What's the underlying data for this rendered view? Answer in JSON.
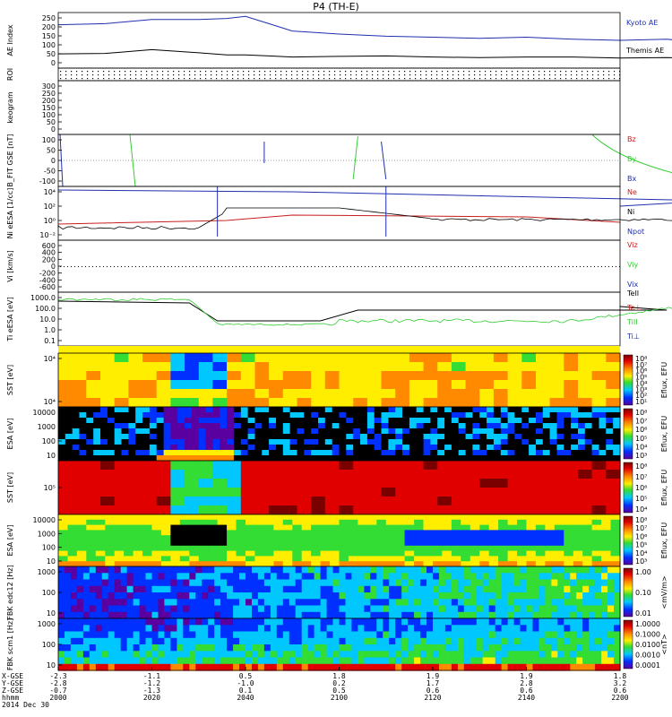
{
  "title": "P4 (TH-E)",
  "colors": {
    "blue": "#1f2fb0",
    "red": "#c81e1e",
    "green": "#33cc33",
    "black": "#000000"
  },
  "footer": {
    "row_labels": [
      "X-GSE",
      "Y-GSE",
      "Z-GSE",
      "hhmm",
      "2014 Dec 30"
    ],
    "columns": [
      {
        "x": [
          "-2.3",
          "-2.8",
          "-0.7",
          "2000"
        ]
      },
      {
        "x": [
          "-1.1",
          "-1.2",
          "-1.3",
          "2020"
        ]
      },
      {
        "x": [
          "0.5",
          "-1.0",
          "0.1",
          "2040"
        ]
      },
      {
        "x": [
          "1.8",
          "0.2",
          "0.5",
          "2100"
        ]
      },
      {
        "x": [
          "1.9",
          "1.7",
          "0.6",
          "2120"
        ]
      },
      {
        "x": [
          "1.9",
          "2.8",
          "0.6",
          "2140"
        ]
      },
      {
        "x": [
          "1.8",
          "3.2",
          "0.6",
          "2200"
        ]
      }
    ]
  },
  "chart_data": [
    {
      "type": "line",
      "panel": "ae",
      "ylabel": "AE Index",
      "yticks": [
        "250",
        "200",
        "150",
        "100",
        "50",
        "0"
      ],
      "ylim": [
        0,
        250
      ],
      "x": [
        2000,
        2010,
        2020,
        2030,
        2036,
        2040,
        2045,
        2050,
        2060,
        2070,
        2080,
        2090,
        2100,
        2110,
        2120,
        2130,
        2140,
        2150,
        2155,
        2160,
        2200
      ],
      "series": [
        {
          "name": "Kyoto AE",
          "color": "#1f2fb0",
          "values": [
            200,
            205,
            225,
            225,
            230,
            240,
            205,
            170,
            155,
            145,
            140,
            135,
            140,
            130,
            125,
            130,
            110,
            80,
            90,
            60,
            110
          ]
        },
        {
          "name": "Themis AE",
          "color": "#000000",
          "values": [
            60,
            62,
            80,
            65,
            55,
            55,
            50,
            45,
            48,
            50,
            45,
            42,
            45,
            45,
            40,
            42,
            38,
            35,
            40,
            30,
            70
          ]
        }
      ]
    },
    {
      "type": "line",
      "panel": "roi",
      "ylabel": "ROI",
      "series": []
    },
    {
      "type": "heatmap",
      "panel": "keogram",
      "ylabel": "keogram",
      "yticks": [
        "300",
        "250",
        "200",
        "150",
        "100",
        "50",
        "0"
      ],
      "ylim": [
        0,
        300
      ]
    },
    {
      "type": "line",
      "panel": "bfit",
      "ylabel": "B_FIT GSE [nT]",
      "yticks": [
        "100",
        "50",
        "0",
        "-50",
        "-100"
      ],
      "ylim": [
        -100,
        100
      ],
      "series": [
        {
          "name": "Bz",
          "color": "#c81e1e",
          "values": []
        },
        {
          "name": "By",
          "color": "#33cc33",
          "values": []
        },
        {
          "name": "Bx",
          "color": "#1f2fb0",
          "values": []
        }
      ]
    },
    {
      "type": "line",
      "panel": "ni",
      "ylabel": "Ni eESA [1/cc]",
      "yticks": [
        "10⁴",
        "10²",
        "10⁰",
        "10⁻²"
      ],
      "series": [
        {
          "name": "Ne",
          "color": "#c81e1e"
        },
        {
          "name": "Ni",
          "color": "#000000"
        },
        {
          "name": "Npot",
          "color": "#1f2fb0"
        }
      ]
    },
    {
      "type": "line",
      "panel": "vi",
      "ylabel": "Vi [km/s]",
      "yticks": [
        "600",
        "400",
        "200",
        "0",
        "-200",
        "-400",
        "-600"
      ],
      "ylim": [
        -600,
        600
      ],
      "series": [
        {
          "name": "Viz",
          "color": "#c81e1e"
        },
        {
          "name": "Viy",
          "color": "#33cc33"
        },
        {
          "name": "Vix",
          "color": "#1f2fb0"
        }
      ]
    },
    {
      "type": "line",
      "panel": "ti",
      "ylabel": "Ti eESA [eV]",
      "yticks": [
        "1000.0",
        "100.0",
        "10.0",
        "1.0",
        "0.1"
      ],
      "series": [
        {
          "name": "TeII",
          "color": "#000000"
        },
        {
          "name": "Te⊥",
          "color": "#c81e1e"
        },
        {
          "name": "TiII",
          "color": "#33cc33"
        },
        {
          "name": "Ti⊥",
          "color": "#1f2fb0"
        }
      ]
    },
    {
      "type": "heatmap",
      "panel": "sst_e",
      "ylabel": "SST [eV]",
      "yticks": [
        "10⁴",
        "10⁴"
      ],
      "colorbar": {
        "label": "Eflux, EFU",
        "ticks": [
          "10⁸",
          "10⁷",
          "10⁶",
          "10⁵",
          "10⁴",
          "10³",
          "10²",
          "10¹"
        ]
      }
    },
    {
      "type": "heatmap",
      "panel": "esa_e",
      "ylabel": "ESA [eV]",
      "yticks": [
        "10000",
        "1000",
        "100",
        "10"
      ],
      "colorbar": {
        "label": "Eflux, EFU",
        "ticks": [
          "10⁸",
          "10⁷",
          "10⁶",
          "10⁵",
          "10⁴",
          "10³"
        ]
      }
    },
    {
      "type": "heatmap",
      "panel": "sst_i",
      "ylabel": "SST [eV]",
      "yticks": [
        "10⁵"
      ],
      "colorbar": {
        "label": "Eflux, EFU",
        "ticks": [
          "10⁸",
          "10⁷",
          "10⁶",
          "10⁵",
          "10⁴"
        ]
      }
    },
    {
      "type": "heatmap",
      "panel": "esa_i",
      "ylabel": "ESA [eV]",
      "yticks": [
        "10000",
        "1000",
        "100",
        "10"
      ],
      "colorbar": {
        "label": "Eflux, EFU",
        "ticks": [
          "10⁸",
          "10⁷",
          "10⁶",
          "10⁵",
          "10⁴",
          "10³"
        ]
      }
    },
    {
      "type": "heatmap",
      "panel": "fbk_edc12",
      "ylabel": "FBK edc12 [Hz]",
      "yticks": [
        "1000",
        "100",
        "10"
      ],
      "colorbar": {
        "label": "<mV/m>",
        "ticks": [
          "1.00",
          "0.10",
          "0.01"
        ]
      }
    },
    {
      "type": "heatmap",
      "panel": "fbk_scm1",
      "ylabel": "FBK scm1 [Hz]",
      "yticks": [
        "1000",
        "100",
        "10"
      ],
      "colorbar": {
        "label": "<nT>",
        "ticks": [
          "1.0000",
          "0.1000",
          "0.0100",
          "0.0010",
          "0.0001"
        ]
      }
    }
  ]
}
